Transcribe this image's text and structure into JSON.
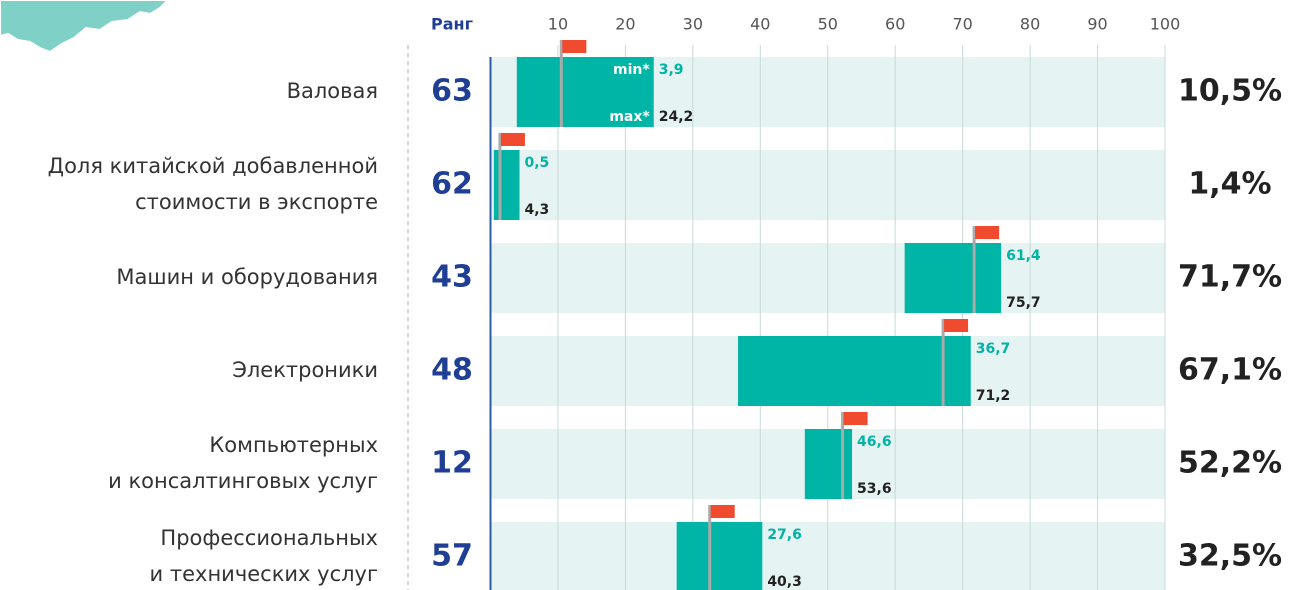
{
  "chart_data": {
    "type": "range-bar",
    "rank_header": "Ранг",
    "annotations": {
      "min_label": "min*",
      "max_label": "max*"
    },
    "categories": [
      [
        "Валовая"
      ],
      [
        "Доля китайской добавленной",
        "стоимости в экспорте"
      ],
      [
        "Машин и оборудования"
      ],
      [
        "Электроники"
      ],
      [
        "Компьютерных",
        "и консалтинговых услуг"
      ],
      [
        "Профессиональных",
        "и технических услуг"
      ]
    ],
    "ranks": [
      63,
      62,
      43,
      48,
      12,
      57
    ],
    "series": [
      {
        "name": "min",
        "color": "#00b3a4",
        "values": [
          3.9,
          0.5,
          61.4,
          36.7,
          46.6,
          27.6
        ],
        "value_labels": [
          "3,9",
          "0,5",
          "61,4",
          "36,7",
          "46,6",
          "27,6"
        ]
      },
      {
        "name": "max",
        "color": "#222222",
        "values": [
          24.2,
          4.3,
          75.7,
          71.2,
          53.6,
          40.3
        ],
        "value_labels": [
          "24,2",
          "4,3",
          "75,7",
          "71,2",
          "53,6",
          "40,3"
        ]
      },
      {
        "name": "value",
        "color": "#f04a2f",
        "values": [
          10.5,
          1.4,
          71.7,
          67.1,
          52.2,
          32.5
        ],
        "value_labels": [
          "10,5%",
          "1,4%",
          "71,7%",
          "67,1%",
          "52,2%",
          "32,5%"
        ]
      }
    ],
    "xlim": [
      0,
      100
    ],
    "xticks": [
      10,
      20,
      30,
      40,
      50,
      60,
      70,
      80,
      90,
      100
    ],
    "grid": true
  }
}
